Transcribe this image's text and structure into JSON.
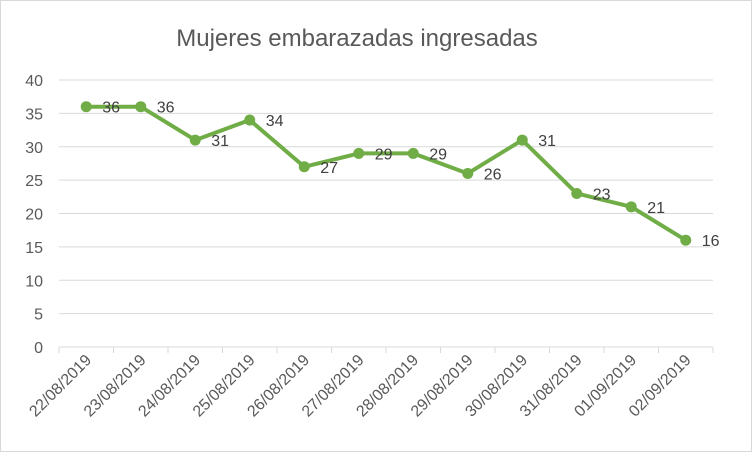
{
  "chart_data": {
    "type": "line",
    "title": "Mujeres embarazadas ingresadas",
    "xlabel": "",
    "ylabel": "",
    "categories": [
      "22/08/2019",
      "23/08/2019",
      "24/08/2019",
      "25/08/2019",
      "26/08/2019",
      "27/08/2019",
      "28/08/2019",
      "29/08/2019",
      "30/08/2019",
      "31/08/2019",
      "01/09/2019",
      "02/09/2019"
    ],
    "series": [
      {
        "values": [
          36,
          36,
          31,
          34,
          27,
          29,
          29,
          26,
          31,
          23,
          21,
          16
        ],
        "color": "#70ad47"
      }
    ],
    "ylim": [
      0,
      40
    ],
    "yticks": [
      "0",
      "5",
      "10",
      "15",
      "20",
      "25",
      "30",
      "35",
      "40"
    ],
    "grid": true,
    "legend": "none",
    "data_labels": true
  }
}
